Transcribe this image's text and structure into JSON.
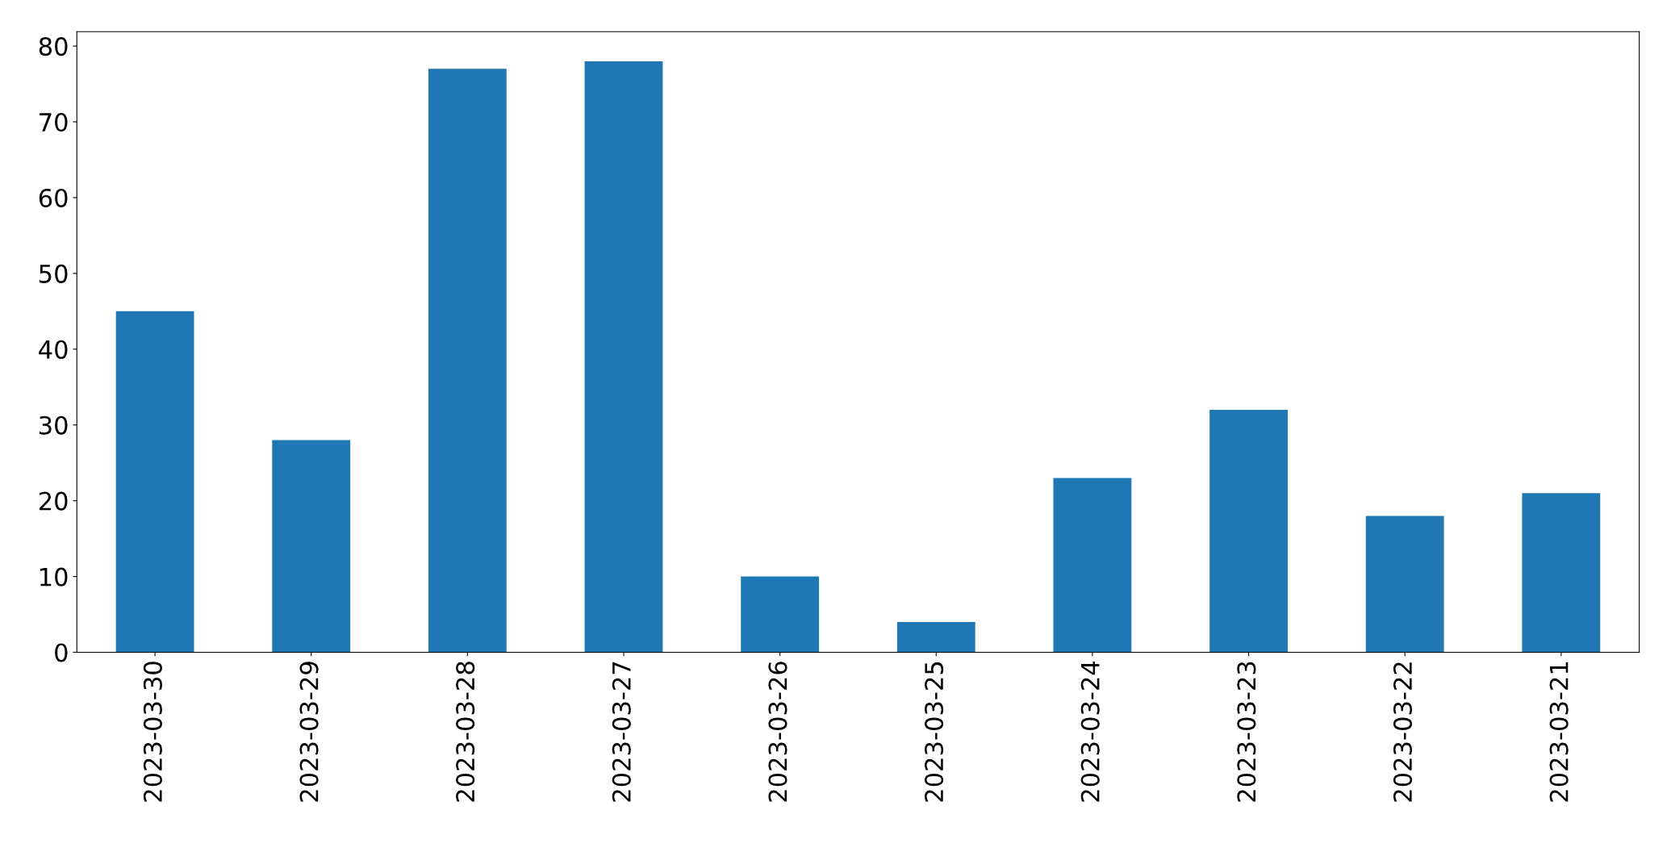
{
  "chart_data": {
    "type": "bar",
    "categories": [
      "2023-03-30",
      "2023-03-29",
      "2023-03-28",
      "2023-03-27",
      "2023-03-26",
      "2023-03-25",
      "2023-03-24",
      "2023-03-23",
      "2023-03-22",
      "2023-03-21"
    ],
    "values": [
      45,
      28,
      77,
      78,
      10,
      4,
      23,
      32,
      18,
      21
    ],
    "color": "#1f77b4",
    "ylim": [
      0,
      81.9
    ],
    "yticks": [
      0,
      10,
      20,
      30,
      40,
      50,
      60,
      70,
      80
    ],
    "grid": false,
    "legend": false
  }
}
